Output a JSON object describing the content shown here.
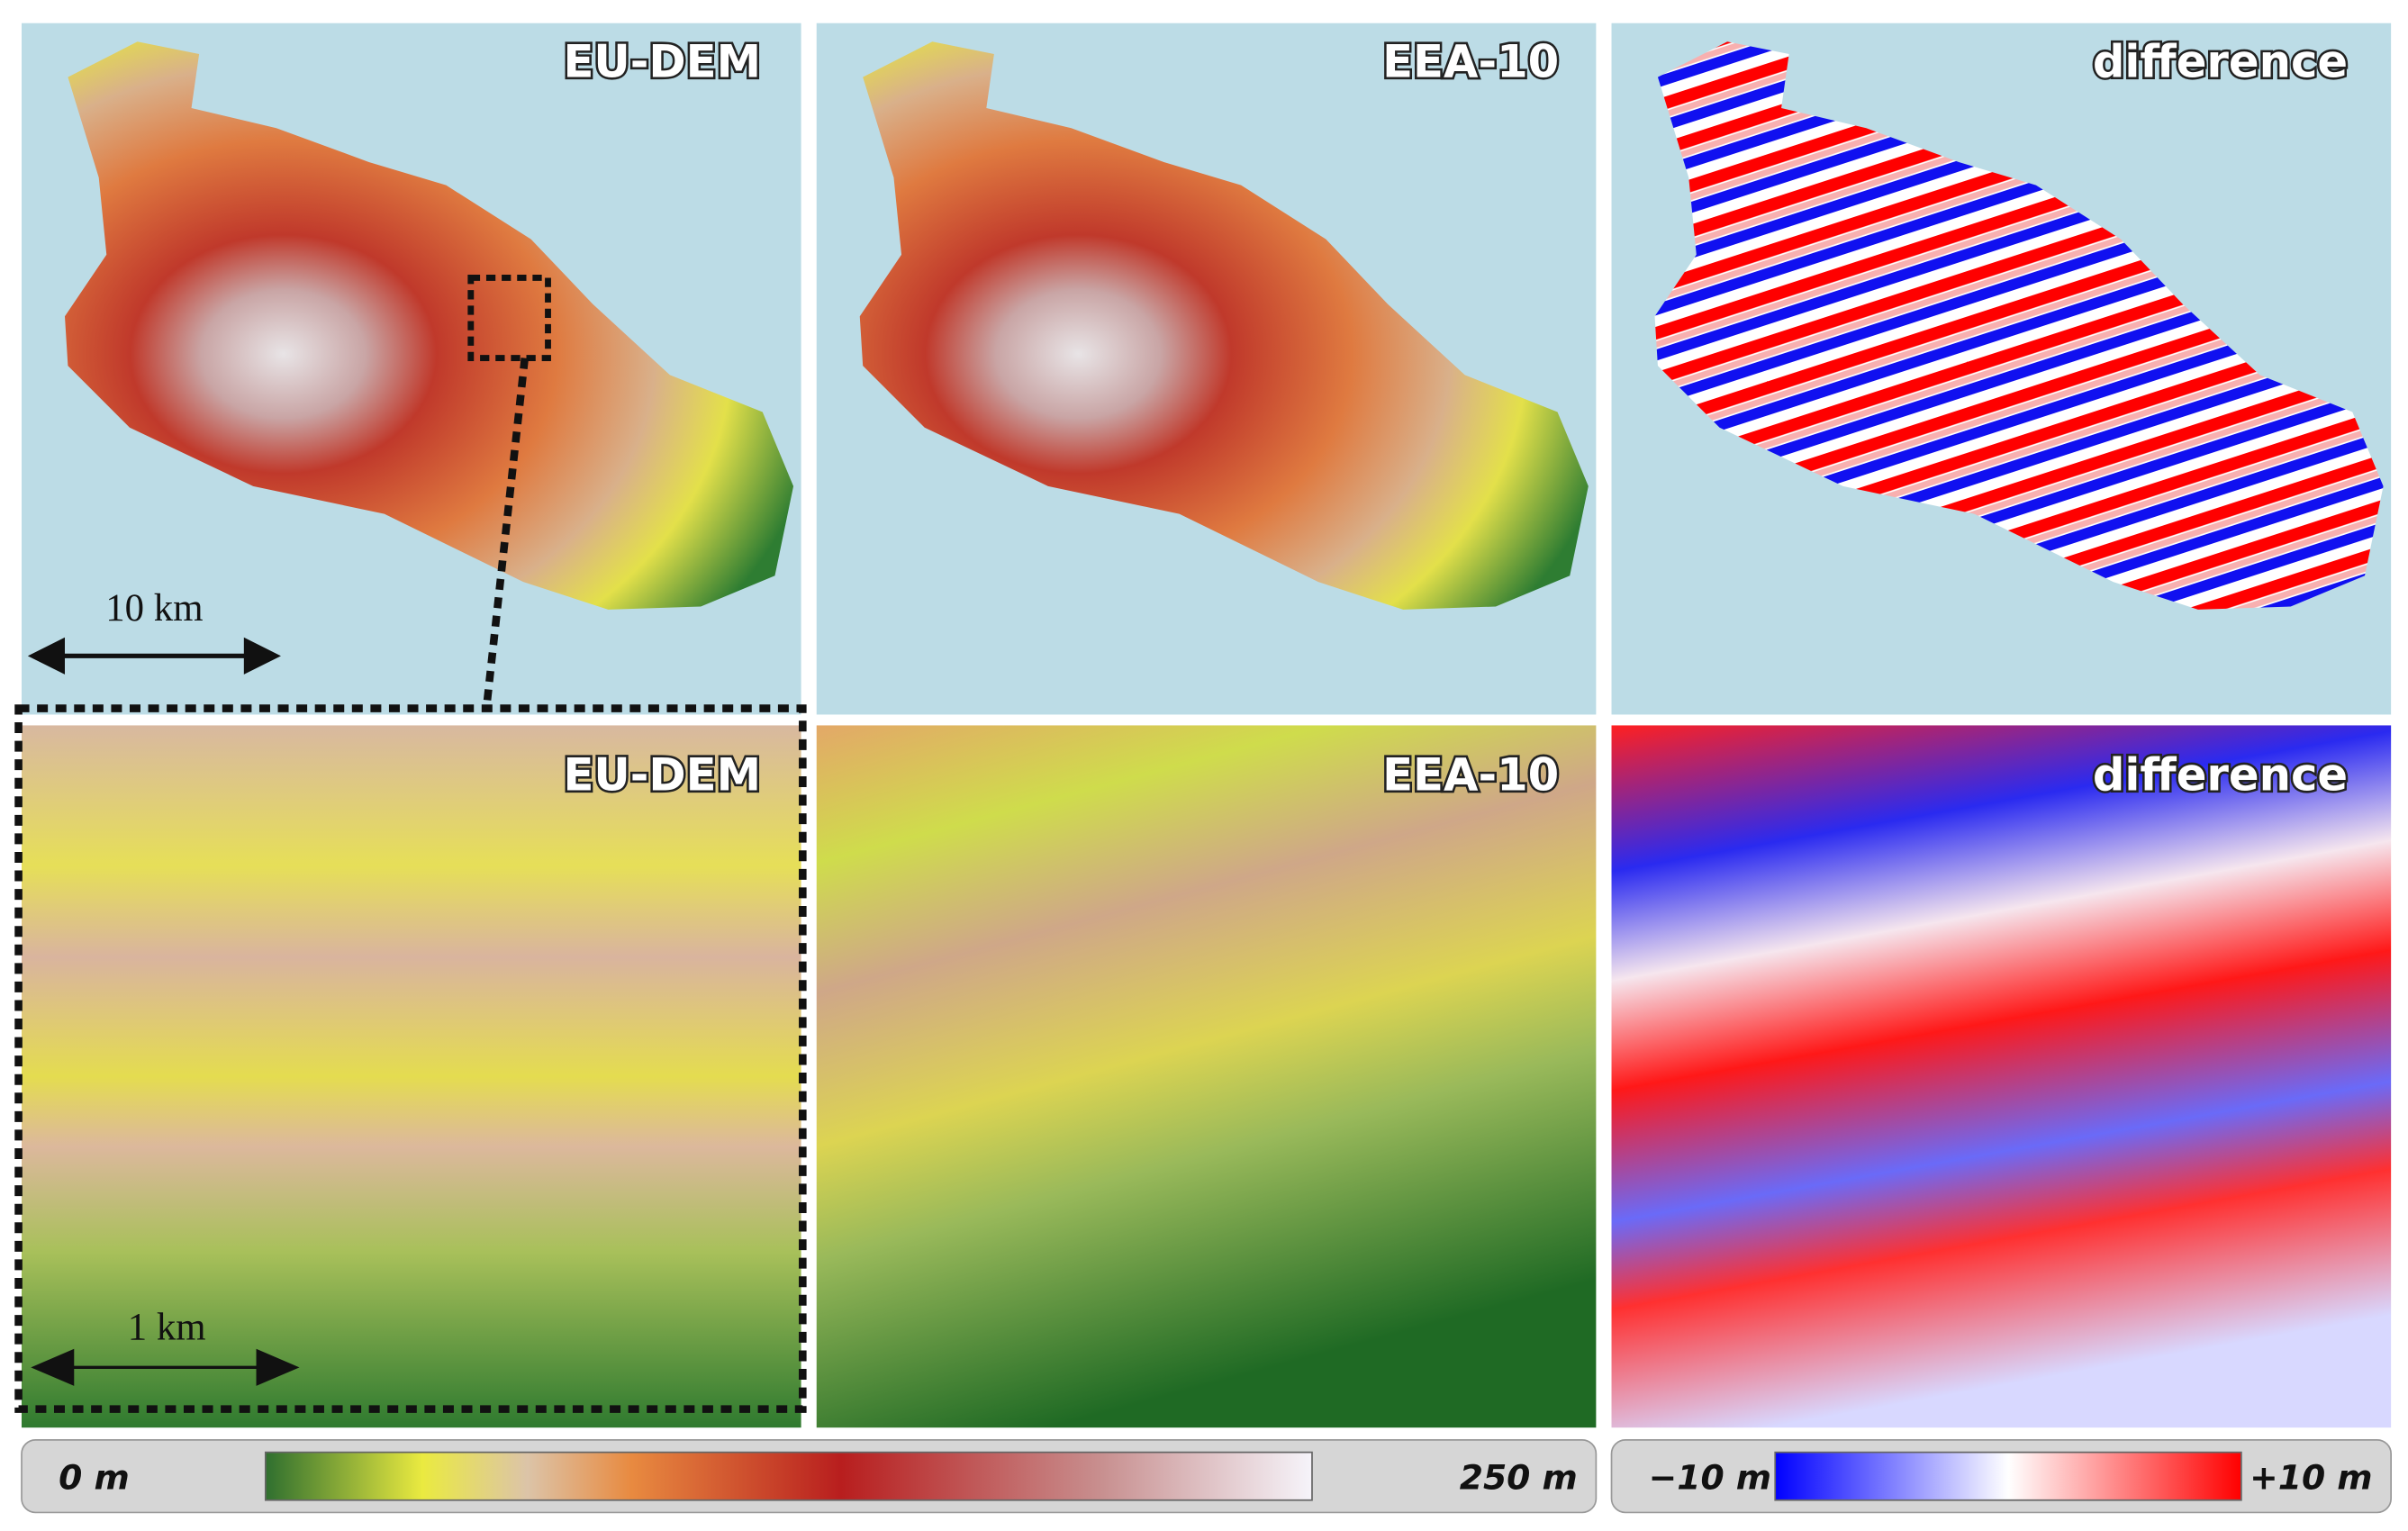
{
  "panels": [
    {
      "label": "EU-DEM"
    },
    {
      "label": "EEA-10"
    },
    {
      "label": "difference"
    },
    {
      "label": "EU-DEM"
    },
    {
      "label": "EEA-10"
    },
    {
      "label": "difference"
    }
  ],
  "scale_bars": [
    "10 km",
    "1 km"
  ],
  "colorbars": [
    {
      "min_label": "0 m",
      "max_label": "250 m"
    },
    {
      "min_label": "−10 m",
      "max_label": "+10 m"
    }
  ]
}
